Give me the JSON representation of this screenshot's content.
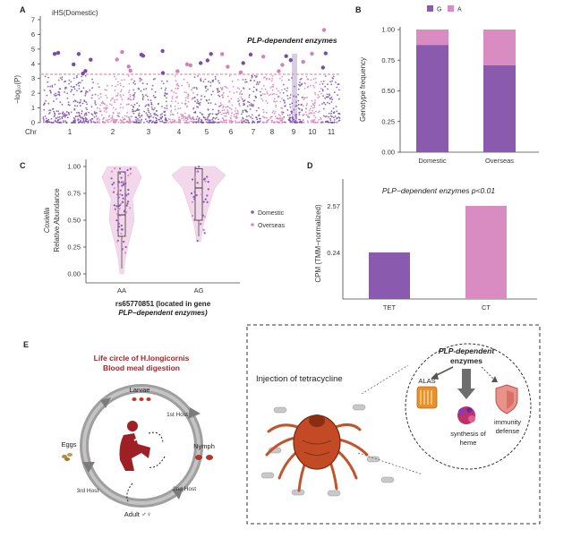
{
  "panels": {
    "A": {
      "letter": "A",
      "title": "iHS(Domestic)",
      "ylabel": "−log₁₀(P)",
      "chr_label": "Chr",
      "annotation": "PLP-dependent enzymes"
    },
    "B": {
      "letter": "B",
      "ylabel": "Genotype frequency",
      "legend": [
        "G",
        "A"
      ]
    },
    "C": {
      "letter": "C",
      "ylabel_italic": "Coxiella",
      "ylabel": "Relative Abundance",
      "xlabel_line1": "rs65770851 (located in gene",
      "xlabel_line2": "PLP−dependent enzymes)",
      "legend": [
        "Domestic",
        "Overseas"
      ]
    },
    "D": {
      "letter": "D",
      "title": "PLP−dependent enzymes p<0.01",
      "ylabel": "CPM (TMM−normalized)"
    },
    "E": {
      "letter": "E",
      "title_line1": "Life circle of H.longicornis",
      "title_line2": "Blood meal digestion",
      "stages": {
        "larvae": "Larvae",
        "nymph": "Nymph",
        "adult": "Adult ♂♀",
        "eggs": "Eggs"
      },
      "hosts": {
        "first": "1st Host",
        "second": "2nd Host",
        "third": "3rd Host"
      },
      "injection": "Injection of tetracycline",
      "plp_line1": "PLP-dependent",
      "plp_line2": "enzymes",
      "alas": "ALAS",
      "heme_line1": "synthesis of",
      "heme_line2": "heme",
      "immunity_line1": "immunity",
      "immunity_line2": "defense"
    }
  },
  "colors": {
    "domestic": "#8a5aae",
    "overseas": "#d98cc1",
    "manhattan_a": "#7a4ca6",
    "manhattan_b": "#d67fb8",
    "threshold": "#d24b6b",
    "lifecycle_title": "#a8262c"
  },
  "chart_data": [
    {
      "panel": "A",
      "type": "scatter",
      "title": "iHS(Domestic)",
      "ylabel": "−log₁₀(P)",
      "xlabel": "Chr",
      "categories": [
        "1",
        "2",
        "3",
        "4",
        "5",
        "6",
        "7",
        "8",
        "9",
        "10",
        "11"
      ],
      "yticks": [
        0,
        1,
        2,
        3,
        4,
        5,
        6,
        7
      ],
      "ylim": [
        0,
        7
      ],
      "threshold": 3.3,
      "highlight_chr": "9",
      "annotation": "PLP-dependent enzymes"
    },
    {
      "panel": "B",
      "type": "bar",
      "stacked": true,
      "categories": [
        "Domestic",
        "Overseas"
      ],
      "series": [
        {
          "name": "G",
          "values": [
            0.875,
            0.71
          ]
        },
        {
          "name": "A",
          "values": [
            0.125,
            0.29
          ]
        }
      ],
      "ylabel": "Genotype frequency",
      "yticks": [
        "0.00",
        "0.25",
        "0.50",
        "0.75",
        "1.00"
      ],
      "ylim": [
        0,
        1
      ]
    },
    {
      "panel": "C",
      "type": "violin",
      "categories": [
        "AA",
        "AG"
      ],
      "yticks": [
        "0.00",
        "0.25",
        "0.50",
        "0.75",
        "1.00"
      ],
      "ylim": [
        0,
        1
      ],
      "medians": [
        0.55,
        0.8
      ],
      "q1": [
        0.35,
        0.5
      ],
      "q3": [
        0.95,
        0.98
      ],
      "legend": [
        "Domestic",
        "Overseas"
      ]
    },
    {
      "panel": "D",
      "type": "bar",
      "categories": [
        "TET",
        "CT"
      ],
      "values": [
        0.24,
        2.57
      ],
      "yticks": [
        "0.24",
        "2.57"
      ],
      "ylabel": "CPM (TMM−normalized)",
      "title": "PLP−dependent enzymes p<0.01"
    }
  ]
}
